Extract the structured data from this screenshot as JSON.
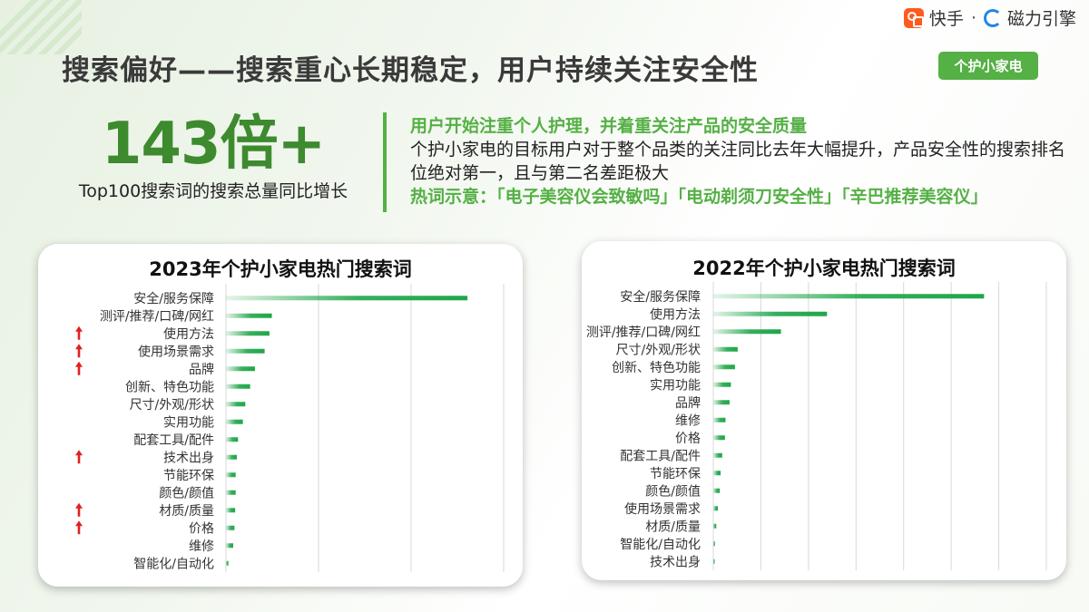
{
  "brand": {
    "kuaishou": "快手",
    "separator": "·",
    "cili": "磁力引擎"
  },
  "header": {
    "title": "搜索偏好——搜索重心长期稳定，用户持续关注安全性",
    "tag": "个护小家电"
  },
  "stat": {
    "value": "143倍+",
    "caption": "Top100搜索词的搜索总量同比增长"
  },
  "description": {
    "headline": "用户开始注重个人护理，并着重关注产品的安全质量",
    "body": "个护小家电的目标用户对于整个品类的关注同比去年大幅提升，产品安全性的搜索排名位绝对第一，且与第二名差距极大",
    "hotwords": "热词示意：「电子美容仪会致敏吗」「电动剃须刀安全性」「辛巴推荐美容仪」"
  },
  "colors": {
    "accent": "#55b045",
    "bar": "#1fa64a",
    "arrow": "#e02020"
  },
  "chart_data": [
    {
      "type": "bar",
      "orientation": "horizontal",
      "title": "2023年个护小家电热门搜索词",
      "categories": [
        "安全/服务保障",
        "测评/推荐/口碑/网红",
        "使用方法",
        "使用场景需求",
        "品牌",
        "创新、特色功能",
        "尺寸/外观/形状",
        "实用功能",
        "配套工具/配件",
        "技术出身",
        "节能环保",
        "颜色/颜值",
        "材质/质量",
        "价格",
        "维修",
        "智能化/自动化"
      ],
      "values": [
        100,
        19,
        18,
        16,
        12,
        10,
        8,
        7,
        5,
        4.5,
        4,
        4,
        3.8,
        3.5,
        3,
        1
      ],
      "up_arrow": [
        false,
        false,
        true,
        true,
        true,
        false,
        false,
        false,
        false,
        true,
        false,
        false,
        true,
        true,
        false,
        false
      ],
      "xlim": [
        0,
        115
      ],
      "grid": true
    },
    {
      "type": "bar",
      "orientation": "horizontal",
      "title": "2022年个护小家电热门搜索词",
      "categories": [
        "安全/服务保障",
        "使用方法",
        "测评/推荐/口碑/网红",
        "尺寸/外观/形状",
        "创新、特色功能",
        "实用功能",
        "品牌",
        "维修",
        "价格",
        "配套工具/配件",
        "节能环保",
        "颜色/颜值",
        "使用场景需求",
        "材质/质量",
        "智能化/自动化",
        "技术出身"
      ],
      "values": [
        100,
        42,
        25,
        9,
        8,
        6.5,
        6,
        4.5,
        4.3,
        3.3,
        2.7,
        2.4,
        1.7,
        1.1,
        0.6,
        0.4
      ],
      "xlim": [
        0,
        123
      ],
      "grid": true
    }
  ]
}
